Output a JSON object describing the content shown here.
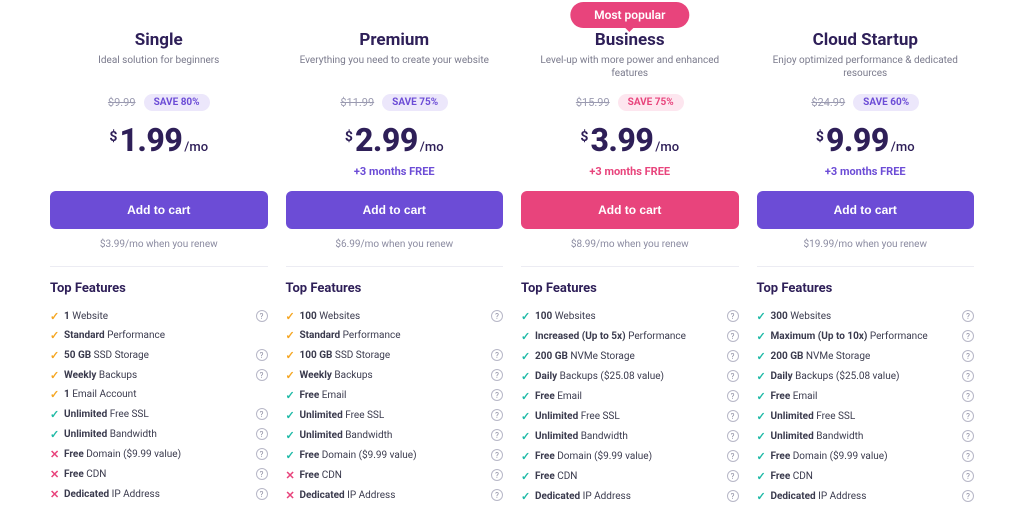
{
  "colors": {
    "purple": "#6c4cd6",
    "pink": "#e8447c",
    "pill_purple_bg": "#ece7fb",
    "pill_purple_text": "#6c4cd6",
    "pill_pink_bg": "#fde6ef",
    "pill_pink_text": "#e8447c",
    "check_orange": "#f5a623",
    "check_teal": "#1fbaa7",
    "cross_red": "#e8447c"
  },
  "common": {
    "currency": "$",
    "period": "/mo",
    "cta": "Add to cart",
    "features_title": "Top Features",
    "badge_text": "Most popular"
  },
  "plans": [
    {
      "title": "Single",
      "subtitle": "Ideal solution for beginners",
      "old_price": "$9.99",
      "save": "SAVE 80%",
      "save_style": "purple",
      "price": "1.99",
      "bonus": "",
      "bonus_color": "",
      "cta_style": "purple",
      "renew": "$3.99/mo when you renew",
      "badge": false,
      "features": [
        {
          "icon": "check",
          "icon_color": "orange",
          "bold": "1",
          "text": " Website",
          "help": true
        },
        {
          "icon": "check",
          "icon_color": "orange",
          "bold": "Standard",
          "text": " Performance",
          "help": false
        },
        {
          "icon": "check",
          "icon_color": "orange",
          "bold": "50 GB",
          "text": " SSD Storage",
          "help": true
        },
        {
          "icon": "check",
          "icon_color": "orange",
          "bold": "Weekly",
          "text": " Backups",
          "help": true
        },
        {
          "icon": "check",
          "icon_color": "orange",
          "bold": "1",
          "text": " Email Account",
          "help": false
        },
        {
          "icon": "check",
          "icon_color": "teal",
          "bold": "Unlimited",
          "text": " Free SSL",
          "help": true
        },
        {
          "icon": "check",
          "icon_color": "teal",
          "bold": "Unlimited",
          "text": " Bandwidth",
          "help": true
        },
        {
          "icon": "cross",
          "icon_color": "red",
          "bold": "Free",
          "text": " Domain ($9.99 value)",
          "help": true
        },
        {
          "icon": "cross",
          "icon_color": "red",
          "bold": "Free",
          "text": " CDN",
          "help": true
        },
        {
          "icon": "cross",
          "icon_color": "red",
          "bold": "Dedicated",
          "text": " IP Address",
          "help": true
        }
      ]
    },
    {
      "title": "Premium",
      "subtitle": "Everything you need to create your website",
      "old_price": "$11.99",
      "save": "SAVE 75%",
      "save_style": "purple",
      "price": "2.99",
      "bonus": "+3 months FREE",
      "bonus_color": "purple",
      "cta_style": "purple",
      "renew": "$6.99/mo when you renew",
      "badge": false,
      "features": [
        {
          "icon": "check",
          "icon_color": "orange",
          "bold": "100",
          "text": " Websites",
          "help": true
        },
        {
          "icon": "check",
          "icon_color": "orange",
          "bold": "Standard",
          "text": " Performance",
          "help": false
        },
        {
          "icon": "check",
          "icon_color": "orange",
          "bold": "100 GB",
          "text": " SSD Storage",
          "help": true
        },
        {
          "icon": "check",
          "icon_color": "orange",
          "bold": "Weekly",
          "text": " Backups",
          "help": true
        },
        {
          "icon": "check",
          "icon_color": "teal",
          "bold": "Free",
          "text": " Email",
          "help": true
        },
        {
          "icon": "check",
          "icon_color": "teal",
          "bold": "Unlimited",
          "text": " Free SSL",
          "help": true
        },
        {
          "icon": "check",
          "icon_color": "teal",
          "bold": "Unlimited",
          "text": " Bandwidth",
          "help": true
        },
        {
          "icon": "check",
          "icon_color": "teal",
          "bold": "Free",
          "text": " Domain ($9.99 value)",
          "help": true
        },
        {
          "icon": "cross",
          "icon_color": "red",
          "bold": "Free",
          "text": " CDN",
          "help": true
        },
        {
          "icon": "cross",
          "icon_color": "red",
          "bold": "Dedicated",
          "text": " IP Address",
          "help": true
        }
      ]
    },
    {
      "title": "Business",
      "subtitle": "Level-up with more power and enhanced features",
      "old_price": "$15.99",
      "save": "SAVE 75%",
      "save_style": "pink",
      "price": "3.99",
      "bonus": "+3 months FREE",
      "bonus_color": "pink",
      "cta_style": "pink",
      "renew": "$8.99/mo when you renew",
      "badge": true,
      "features": [
        {
          "icon": "check",
          "icon_color": "teal",
          "bold": "100",
          "text": " Websites",
          "help": true
        },
        {
          "icon": "check",
          "icon_color": "teal",
          "bold": "Increased (Up to 5x)",
          "text": " Performance",
          "help": true
        },
        {
          "icon": "check",
          "icon_color": "teal",
          "bold": "200 GB",
          "text": " NVMe Storage",
          "help": true
        },
        {
          "icon": "check",
          "icon_color": "teal",
          "bold": "Daily",
          "text": " Backups ($25.08 value)",
          "help": true
        },
        {
          "icon": "check",
          "icon_color": "teal",
          "bold": "Free",
          "text": " Email",
          "help": true
        },
        {
          "icon": "check",
          "icon_color": "teal",
          "bold": "Unlimited",
          "text": " Free SSL",
          "help": true
        },
        {
          "icon": "check",
          "icon_color": "teal",
          "bold": "Unlimited",
          "text": " Bandwidth",
          "help": true
        },
        {
          "icon": "check",
          "icon_color": "teal",
          "bold": "Free",
          "text": " Domain ($9.99 value)",
          "help": true
        },
        {
          "icon": "check",
          "icon_color": "teal",
          "bold": "Free",
          "text": " CDN",
          "help": true
        },
        {
          "icon": "check",
          "icon_color": "teal",
          "bold": "Dedicated",
          "text": " IP Address",
          "help": true
        }
      ]
    },
    {
      "title": "Cloud Startup",
      "subtitle": "Enjoy optimized performance & dedicated resources",
      "old_price": "$24.99",
      "save": "SAVE 60%",
      "save_style": "purple",
      "price": "9.99",
      "bonus": "+3 months FREE",
      "bonus_color": "purple",
      "cta_style": "purple",
      "renew": "$19.99/mo when you renew",
      "badge": false,
      "features": [
        {
          "icon": "check",
          "icon_color": "teal",
          "bold": "300",
          "text": " Websites",
          "help": true
        },
        {
          "icon": "check",
          "icon_color": "teal",
          "bold": "Maximum (Up to 10x)",
          "text": " Performance",
          "help": true
        },
        {
          "icon": "check",
          "icon_color": "teal",
          "bold": "200 GB",
          "text": " NVMe Storage",
          "help": true
        },
        {
          "icon": "check",
          "icon_color": "teal",
          "bold": "Daily",
          "text": " Backups ($25.08 value)",
          "help": true
        },
        {
          "icon": "check",
          "icon_color": "teal",
          "bold": "Free",
          "text": " Email",
          "help": true
        },
        {
          "icon": "check",
          "icon_color": "teal",
          "bold": "Unlimited",
          "text": " Free SSL",
          "help": true
        },
        {
          "icon": "check",
          "icon_color": "teal",
          "bold": "Unlimited",
          "text": " Bandwidth",
          "help": true
        },
        {
          "icon": "check",
          "icon_color": "teal",
          "bold": "Free",
          "text": " Domain ($9.99 value)",
          "help": true
        },
        {
          "icon": "check",
          "icon_color": "teal",
          "bold": "Free",
          "text": " CDN",
          "help": true
        },
        {
          "icon": "check",
          "icon_color": "teal",
          "bold": "Dedicated",
          "text": " IP Address",
          "help": true
        }
      ]
    }
  ]
}
